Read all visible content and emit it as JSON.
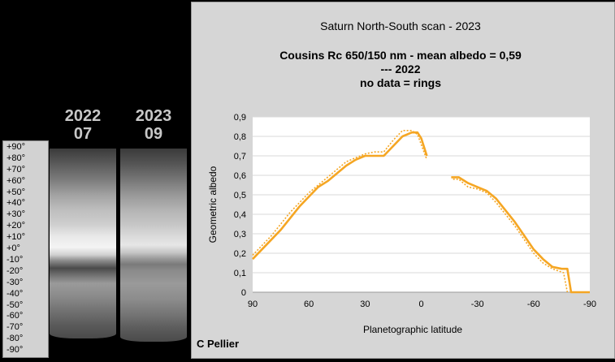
{
  "left_panel": {
    "labels": [
      {
        "year": "2022",
        "month": "07"
      },
      {
        "year": "2023",
        "month": "09"
      }
    ],
    "lat_ticks": [
      "+90°",
      "+80°",
      "+70°",
      "+60°",
      "+50°",
      "+40°",
      "+30°",
      "+20°",
      "+10°",
      "+0°",
      "-10°",
      "-20°",
      "-30°",
      "-40°",
      "-50°",
      "-60°",
      "-70°",
      "-80°",
      "-90°"
    ]
  },
  "credit": "C Pellier",
  "chart_data": {
    "type": "line",
    "title": "Saturn North-South scan - 2023",
    "subtitle_lines": [
      "Cousins Rc 650/150 nm - mean albedo = 0,59",
      "--- 2022",
      "no data = rings"
    ],
    "xlabel": "Planetographic latitude",
    "ylabel": "Geometric albedo",
    "xlim": [
      90,
      -90
    ],
    "ylim": [
      0,
      0.9
    ],
    "x_ticks": [
      "90",
      "60",
      "30",
      "0",
      "-30",
      "-60",
      "-90"
    ],
    "y_ticks": [
      "0",
      "0,1",
      "0,2",
      "0,3",
      "0,4",
      "0,5",
      "0,6",
      "0,7",
      "0,8",
      "0,9"
    ],
    "grid": "horizontal",
    "series": [
      {
        "style": "solid",
        "color": "#f5a623",
        "segments": [
          [
            [
              90,
              0.17
            ],
            [
              85,
              0.22
            ],
            [
              80,
              0.27
            ],
            [
              75,
              0.32
            ],
            [
              70,
              0.38
            ],
            [
              65,
              0.44
            ],
            [
              60,
              0.49
            ],
            [
              55,
              0.54
            ],
            [
              50,
              0.57
            ],
            [
              45,
              0.61
            ],
            [
              40,
              0.65
            ],
            [
              35,
              0.68
            ],
            [
              30,
              0.7
            ],
            [
              25,
              0.7
            ],
            [
              20,
              0.7
            ],
            [
              15,
              0.75
            ],
            [
              10,
              0.8
            ],
            [
              5,
              0.82
            ],
            [
              2,
              0.82
            ],
            [
              0,
              0.79
            ],
            [
              -3,
              0.7
            ]
          ],
          [
            [
              -16,
              0.59
            ],
            [
              -20,
              0.59
            ],
            [
              -25,
              0.56
            ],
            [
              -30,
              0.54
            ],
            [
              -35,
              0.52
            ],
            [
              -40,
              0.48
            ],
            [
              -45,
              0.42
            ],
            [
              -50,
              0.36
            ],
            [
              -55,
              0.29
            ],
            [
              -60,
              0.22
            ],
            [
              -65,
              0.17
            ],
            [
              -70,
              0.13
            ],
            [
              -75,
              0.12
            ],
            [
              -78,
              0.12
            ],
            [
              -80,
              0.0
            ],
            [
              -90,
              0.0
            ]
          ]
        ]
      },
      {
        "style": "dotted",
        "color": "#f5a623",
        "segments": [
          [
            [
              90,
              0.19
            ],
            [
              85,
              0.24
            ],
            [
              80,
              0.29
            ],
            [
              75,
              0.35
            ],
            [
              70,
              0.41
            ],
            [
              65,
              0.46
            ],
            [
              60,
              0.51
            ],
            [
              55,
              0.55
            ],
            [
              50,
              0.59
            ],
            [
              45,
              0.63
            ],
            [
              40,
              0.67
            ],
            [
              35,
              0.69
            ],
            [
              30,
              0.71
            ],
            [
              25,
              0.72
            ],
            [
              20,
              0.72
            ],
            [
              15,
              0.78
            ],
            [
              10,
              0.83
            ],
            [
              5,
              0.83
            ],
            [
              2,
              0.81
            ],
            [
              -3,
              0.68
            ]
          ],
          [
            [
              -17,
              0.58
            ],
            [
              -20,
              0.58
            ],
            [
              -25,
              0.54
            ],
            [
              -30,
              0.53
            ],
            [
              -35,
              0.51
            ],
            [
              -40,
              0.46
            ],
            [
              -45,
              0.4
            ],
            [
              -50,
              0.34
            ],
            [
              -55,
              0.27
            ],
            [
              -60,
              0.2
            ],
            [
              -65,
              0.15
            ],
            [
              -70,
              0.12
            ],
            [
              -73,
              0.11
            ],
            [
              -76,
              0.1
            ],
            [
              -78,
              0.0
            ]
          ]
        ]
      }
    ]
  }
}
